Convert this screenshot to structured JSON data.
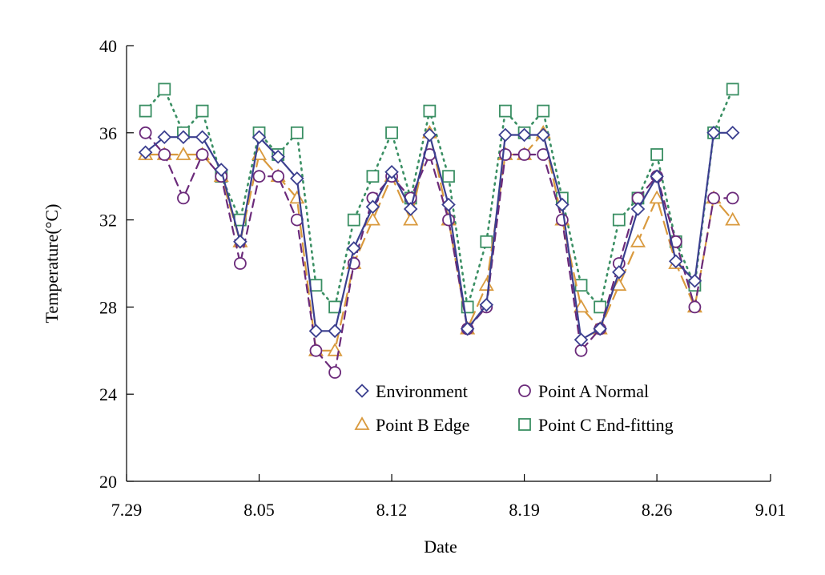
{
  "chart_data": {
    "type": "line",
    "title": "",
    "xlabel": "Date",
    "ylabel": "Temperature(°C)",
    "xlim": [
      "7.29",
      "9.01"
    ],
    "ylim": [
      20,
      40
    ],
    "x_ticks": [
      "7.29",
      "8.05",
      "8.12",
      "8.19",
      "8.26",
      "9.01"
    ],
    "y_ticks": [
      20,
      24,
      28,
      32,
      36,
      40
    ],
    "grid": false,
    "legend_position": "lower-middle",
    "x": [
      "7.30",
      "7.31",
      "8.01",
      "8.02",
      "8.03",
      "8.04",
      "8.05",
      "8.06",
      "8.07",
      "8.08",
      "8.09",
      "8.10",
      "8.11",
      "8.12",
      "8.13",
      "8.14",
      "8.15",
      "8.16",
      "8.17",
      "8.18",
      "8.19",
      "8.20",
      "8.21",
      "8.22",
      "8.23",
      "8.24",
      "8.25",
      "8.26",
      "8.27",
      "8.28",
      "8.29",
      "8.30",
      "8.31"
    ],
    "series": [
      {
        "name": "Environment",
        "marker": "diamond",
        "color": "#3b3f8f",
        "line": "solid",
        "values": [
          35.1,
          35.8,
          35.8,
          35.8,
          34.3,
          31.0,
          35.8,
          34.9,
          33.9,
          26.9,
          26.9,
          30.7,
          32.6,
          34.2,
          32.5,
          35.9,
          32.7,
          27.0,
          28.1,
          35.9,
          35.9,
          35.9,
          32.7,
          26.5,
          27.0,
          29.6,
          32.5,
          34.0,
          30.1,
          29.2,
          36.0,
          36.0,
          null
        ]
      },
      {
        "name": "Point A Normal",
        "marker": "circle",
        "color": "#6b2a7a",
        "line": "dashed",
        "values": [
          36.0,
          35.0,
          33.0,
          35.0,
          34.0,
          30.0,
          34.0,
          34.0,
          32.0,
          26.0,
          25.0,
          30.0,
          33.0,
          34.0,
          33.0,
          35.0,
          32.0,
          27.0,
          28.0,
          35.0,
          35.0,
          35.0,
          32.0,
          26.0,
          27.0,
          30.0,
          33.0,
          34.0,
          31.0,
          28.0,
          33.0,
          33.0,
          null
        ]
      },
      {
        "name": "Point B Edge",
        "marker": "triangle",
        "color": "#d99a3e",
        "line": "long-dash",
        "values": [
          35.0,
          35.0,
          35.0,
          35.0,
          34.0,
          31.0,
          35.0,
          34.0,
          33.0,
          26.0,
          26.0,
          30.0,
          32.0,
          34.0,
          32.0,
          36.0,
          32.0,
          27.0,
          29.0,
          35.0,
          35.0,
          36.0,
          32.0,
          28.0,
          27.0,
          29.0,
          31.0,
          33.0,
          30.0,
          28.0,
          33.0,
          32.0,
          null
        ]
      },
      {
        "name": "Point C End-fitting",
        "marker": "square",
        "color": "#3a8f63",
        "line": "dotted",
        "values": [
          37.0,
          38.0,
          36.0,
          37.0,
          34.0,
          32.0,
          36.0,
          35.0,
          36.0,
          29.0,
          28.0,
          32.0,
          34.0,
          36.0,
          33.0,
          37.0,
          34.0,
          28.0,
          31.0,
          37.0,
          36.0,
          37.0,
          33.0,
          29.0,
          28.0,
          32.0,
          33.0,
          35.0,
          31.0,
          29.0,
          36.0,
          38.0,
          null
        ]
      }
    ]
  }
}
